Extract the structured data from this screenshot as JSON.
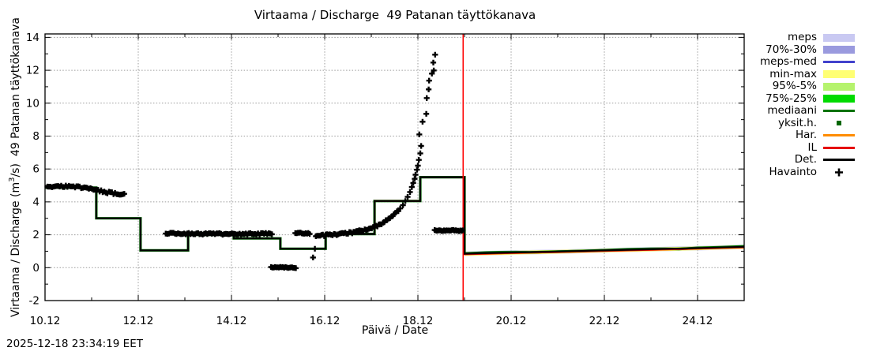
{
  "title": "Virtaama / Discharge  49 Patanan täyttökanava",
  "footer": {
    "timestamp": "2025-12-18 23:34:19 EET"
  },
  "axes": {
    "x_label": "Päivä / Date",
    "y_label_pre": "Virtaama / Discharge (m",
    "y_label_sup": "3",
    "y_label_post": "/s)  49 Patanan täyttökanava",
    "x": {
      "min": 0,
      "max": 15,
      "major_step": 2,
      "minor_step": 1,
      "major_labels": [
        "10.12",
        "12.12",
        "14.12",
        "16.12",
        "18.12",
        "20.12",
        "22.12",
        "24.12"
      ]
    },
    "y": {
      "min": -2.0,
      "max": 14.21,
      "major_step": 2,
      "minor_step": 1,
      "major_values": [
        -2,
        0,
        2,
        4,
        6,
        8,
        10,
        12,
        14
      ],
      "major_labels": [
        "-2",
        "0",
        "2",
        "4",
        "6",
        "8",
        "10",
        "12",
        "14"
      ]
    }
  },
  "colors": {
    "grid": "#9c9c9c",
    "frame": "#000000",
    "now_line": "#ff0000",
    "meps": "#c9c9f2",
    "p7030": "#9a9ade",
    "meps_med": "#4242cc",
    "minmax": "#ffff73",
    "p9505": "#b5f36d",
    "p7525": "#00db00",
    "mediaani": "#007200",
    "yksith": "#006600",
    "har": "#ff8c00",
    "il": "#e60000",
    "det": "#000000",
    "havainto": "#000000"
  },
  "legend": {
    "items": [
      {
        "key": "meps",
        "label": "meps",
        "sample": "band",
        "color": "#c9c9f2"
      },
      {
        "key": "p70-30",
        "label": "70%-30%",
        "sample": "band",
        "color": "#9a9ade"
      },
      {
        "key": "meps-med",
        "label": "meps-med",
        "sample": "line",
        "color": "#4242cc"
      },
      {
        "key": "min-max",
        "label": "min-max",
        "sample": "band",
        "color": "#ffff73"
      },
      {
        "key": "p95-5",
        "label": "95%-5%",
        "sample": "band",
        "color": "#b5f36d"
      },
      {
        "key": "p75-25",
        "label": "75%-25%",
        "sample": "band",
        "color": "#00db00"
      },
      {
        "key": "mediaani",
        "label": "mediaani",
        "sample": "line",
        "color": "#007200"
      },
      {
        "key": "yksit-h",
        "label": "yksit.h.",
        "sample": "dot",
        "color": "#006600"
      },
      {
        "key": "har",
        "label": "Har.",
        "sample": "line",
        "color": "#ff8c00"
      },
      {
        "key": "il",
        "label": "IL",
        "sample": "line",
        "color": "#e60000"
      },
      {
        "key": "det",
        "label": "Det.",
        "sample": "line",
        "color": "#000000"
      },
      {
        "key": "havainto",
        "label": "Havainto",
        "sample": "plus",
        "color": "#000000"
      }
    ]
  },
  "chart_data": {
    "type": "line",
    "x_unit": "days since 10.12 00:00, labels are day.month",
    "now_marker_day": 8.97,
    "bands": [
      {
        "name": "meps",
        "color": "#c9c9f2",
        "upper": [
          [
            9.0,
            0.98
          ],
          [
            9.4,
            1.01
          ],
          [
            10,
            1.05
          ],
          [
            11,
            1.11
          ],
          [
            12,
            1.18
          ],
          [
            13,
            1.25
          ],
          [
            14,
            1.32
          ],
          [
            15,
            1.4
          ]
        ],
        "lower": [
          [
            9.0,
            0.71
          ],
          [
            9.4,
            0.74
          ],
          [
            10,
            0.78
          ],
          [
            11,
            0.84
          ],
          [
            12,
            0.91
          ],
          [
            13,
            0.98
          ],
          [
            14,
            1.05
          ],
          [
            15,
            1.13
          ]
        ]
      },
      {
        "name": "70%-30%",
        "color": "#9a9ade",
        "upper": [
          [
            9.0,
            0.925
          ],
          [
            9.4,
            0.955
          ],
          [
            10,
            0.995
          ],
          [
            11,
            1.055
          ],
          [
            12,
            1.125
          ],
          [
            13,
            1.195
          ],
          [
            14,
            1.265
          ],
          [
            15,
            1.345
          ]
        ],
        "lower": [
          [
            9.0,
            0.775
          ],
          [
            9.4,
            0.805
          ],
          [
            10,
            0.845
          ],
          [
            11,
            0.905
          ],
          [
            12,
            0.975
          ],
          [
            13,
            1.045
          ],
          [
            14,
            1.115
          ],
          [
            15,
            1.195
          ]
        ]
      },
      {
        "name": "min-max",
        "color": "#ffff73",
        "upper": [
          [
            9.0,
            0.95
          ],
          [
            9.4,
            0.98
          ],
          [
            10,
            1.02
          ],
          [
            11,
            1.08
          ],
          [
            12,
            1.15
          ],
          [
            13,
            1.22
          ],
          [
            14,
            1.29
          ],
          [
            15,
            1.37
          ]
        ],
        "lower": [
          [
            9.0,
            0.725
          ],
          [
            9.4,
            0.755
          ],
          [
            10,
            0.795
          ],
          [
            11,
            0.855
          ],
          [
            12,
            0.925
          ],
          [
            13,
            0.995
          ],
          [
            14,
            1.065
          ],
          [
            15,
            1.145
          ]
        ]
      },
      {
        "name": "95%-5%",
        "color": "#b5f36d",
        "upper": [
          [
            9.0,
            0.925
          ],
          [
            9.4,
            0.955
          ],
          [
            10,
            0.995
          ],
          [
            11,
            1.055
          ],
          [
            12,
            1.125
          ],
          [
            13,
            1.195
          ],
          [
            14,
            1.265
          ],
          [
            15,
            1.345
          ]
        ],
        "lower": [
          [
            9.0,
            0.76
          ],
          [
            9.4,
            0.79
          ],
          [
            10,
            0.83
          ],
          [
            11,
            0.89
          ],
          [
            12,
            0.96
          ],
          [
            13,
            1.03
          ],
          [
            14,
            1.1
          ],
          [
            15,
            1.18
          ]
        ]
      },
      {
        "name": "75%-25%",
        "color": "#00db00",
        "upper": [
          [
            9.0,
            0.9
          ],
          [
            9.4,
            0.93
          ],
          [
            10,
            0.97
          ],
          [
            11,
            1.03
          ],
          [
            12,
            1.1
          ],
          [
            13,
            1.17
          ],
          [
            14,
            1.24
          ],
          [
            15,
            1.32
          ]
        ],
        "lower": [
          [
            9.0,
            0.8
          ],
          [
            9.4,
            0.83
          ],
          [
            10,
            0.87
          ],
          [
            11,
            0.93
          ],
          [
            12,
            1.0
          ],
          [
            13,
            1.07
          ],
          [
            14,
            1.14
          ],
          [
            15,
            1.22
          ]
        ]
      }
    ],
    "lines": [
      {
        "name": "meps-med",
        "color": "#4242cc",
        "width": 2,
        "points": [
          [
            9.0,
            0.84
          ],
          [
            9.6,
            0.89
          ],
          [
            10.1,
            0.945
          ],
          [
            10.4,
            0.955
          ],
          [
            10.7,
            0.96
          ],
          [
            11,
            1.0
          ],
          [
            11.5,
            1.045
          ],
          [
            11.95,
            1.075
          ],
          [
            12.3,
            1.06
          ],
          [
            13,
            1.11
          ],
          [
            14,
            1.185
          ],
          [
            15,
            1.265
          ]
        ]
      },
      {
        "name": "Har.",
        "color": "#ff8c00",
        "width": 2,
        "points": [
          [
            9.0,
            0.805
          ],
          [
            10,
            0.875
          ],
          [
            11,
            0.935
          ],
          [
            12,
            1.005
          ],
          [
            13,
            1.075
          ],
          [
            14,
            1.145
          ],
          [
            15,
            1.225
          ]
        ]
      },
      {
        "name": "mediaani",
        "color": "#007200",
        "width": 3.2,
        "points": [
          [
            0,
            4.87
          ],
          [
            1.1,
            4.87
          ],
          [
            1.1,
            3.0
          ],
          [
            2.05,
            3.0
          ],
          [
            2.05,
            1.05
          ],
          [
            3.07,
            1.05
          ],
          [
            3.07,
            2.0
          ],
          [
            4.05,
            2.0
          ],
          [
            4.05,
            1.78
          ],
          [
            5.05,
            1.78
          ],
          [
            5.05,
            1.15
          ],
          [
            6.02,
            1.15
          ],
          [
            6.02,
            2.05
          ],
          [
            7.07,
            2.05
          ],
          [
            7.07,
            4.05
          ],
          [
            8.05,
            4.05
          ],
          [
            8.05,
            5.5
          ],
          [
            9.0,
            5.5
          ],
          [
            9.0,
            0.86
          ],
          [
            9.45,
            0.92
          ],
          [
            9.8,
            0.945
          ],
          [
            10.1,
            0.95
          ],
          [
            10.4,
            0.93
          ],
          [
            11,
            0.985
          ],
          [
            11.5,
            1.01
          ],
          [
            12,
            1.06
          ],
          [
            12.5,
            1.115
          ],
          [
            13,
            1.145
          ],
          [
            13.3,
            1.15
          ],
          [
            13.6,
            1.13
          ],
          [
            14,
            1.21
          ],
          [
            14.5,
            1.24
          ],
          [
            15,
            1.3
          ]
        ]
      },
      {
        "name": "IL",
        "color": "#e60000",
        "width": 2,
        "points": [
          [
            7.07,
            2.05
          ],
          [
            7.07,
            4.05
          ],
          [
            8.05,
            4.05
          ],
          [
            8.05,
            5.5
          ],
          [
            9.0,
            5.5
          ],
          [
            9.0,
            0.815
          ],
          [
            9.4,
            0.845
          ],
          [
            10,
            0.885
          ],
          [
            11,
            0.945
          ],
          [
            12,
            1.015
          ],
          [
            13,
            1.085
          ],
          [
            14,
            1.155
          ],
          [
            15,
            1.235
          ]
        ]
      },
      {
        "name": "Det.",
        "color": "#000000",
        "width": 2.2,
        "points": [
          [
            0,
            4.87
          ],
          [
            1.1,
            4.87
          ],
          [
            1.1,
            3.0
          ],
          [
            2.05,
            3.0
          ],
          [
            2.05,
            1.05
          ],
          [
            3.07,
            1.05
          ],
          [
            3.07,
            2.0
          ],
          [
            4.05,
            2.0
          ],
          [
            4.05,
            1.78
          ],
          [
            5.05,
            1.78
          ],
          [
            5.05,
            1.15
          ],
          [
            6.02,
            1.15
          ],
          [
            6.02,
            2.05
          ],
          [
            7.07,
            2.05
          ],
          [
            7.07,
            4.05
          ],
          [
            8.05,
            4.05
          ],
          [
            8.05,
            5.5
          ],
          [
            9.0,
            5.5
          ],
          [
            9.0,
            0.85
          ],
          [
            9.4,
            0.88
          ],
          [
            10,
            0.92
          ],
          [
            11,
            0.98
          ],
          [
            12,
            1.05
          ],
          [
            13,
            1.12
          ],
          [
            14,
            1.19
          ],
          [
            15,
            1.27
          ]
        ]
      }
    ],
    "observations": {
      "name": "Havainto",
      "marker": "plus",
      "color": "#000000",
      "clusters": [
        {
          "d0": 0.05,
          "d1": 1.7,
          "step": 0.033,
          "jitter": 0.06,
          "anchors": [
            [
              0.05,
              4.87
            ],
            [
              0.3,
              4.93
            ],
            [
              0.6,
              4.94
            ],
            [
              0.9,
              4.83
            ],
            [
              1.2,
              4.65
            ],
            [
              1.5,
              4.5
            ],
            [
              1.7,
              4.43
            ]
          ]
        },
        {
          "d0": 2.59,
          "d1": 4.88,
          "step": 0.033,
          "jitter": 0.05,
          "anchors": [
            [
              2.59,
              2.1
            ],
            [
              3.0,
              2.06
            ],
            [
              4.0,
              2.05
            ],
            [
              4.88,
              2.06
            ]
          ]
        },
        {
          "d0": 4.85,
          "d1": 5.39,
          "step": 0.028,
          "jitter": 0.03,
          "anchors": [
            [
              4.85,
              0.02
            ],
            [
              5.39,
              0.0
            ]
          ]
        },
        {
          "d0": 5.37,
          "d1": 5.69,
          "step": 0.028,
          "jitter": 0.04,
          "anchors": [
            [
              5.37,
              2.1
            ],
            [
              5.69,
              2.08
            ]
          ]
        },
        {
          "d0": 5.81,
          "d1": 7.58,
          "step": 0.03,
          "jitter": 0.06,
          "anchors": [
            [
              5.81,
              1.92
            ],
            [
              6.1,
              2.0
            ],
            [
              6.5,
              2.1
            ],
            [
              6.8,
              2.25
            ],
            [
              7.0,
              2.4
            ],
            [
              7.2,
              2.65
            ],
            [
              7.4,
              3.0
            ],
            [
              7.58,
              3.45
            ]
          ]
        },
        {
          "d0": 8.36,
          "d1": 8.98,
          "step": 0.025,
          "jitter": 0.04,
          "anchors": [
            [
              8.36,
              2.27
            ],
            [
              8.98,
              2.25
            ]
          ]
        }
      ],
      "points": [
        [
          5.75,
          0.62
        ],
        [
          5.79,
          1.15
        ],
        [
          7.62,
          3.6
        ],
        [
          7.68,
          3.8
        ],
        [
          7.73,
          4.05
        ],
        [
          7.78,
          4.3
        ],
        [
          7.83,
          4.6
        ],
        [
          7.87,
          4.9
        ],
        [
          7.9,
          5.15
        ],
        [
          7.93,
          5.4
        ],
        [
          7.95,
          5.65
        ],
        [
          7.98,
          5.95
        ],
        [
          8.0,
          6.2
        ],
        [
          8.02,
          6.55
        ],
        [
          8.05,
          6.95
        ],
        [
          8.07,
          7.4
        ],
        [
          8.03,
          8.1
        ],
        [
          8.1,
          8.87
        ],
        [
          8.18,
          9.35
        ],
        [
          8.19,
          10.31
        ],
        [
          8.23,
          10.84
        ],
        [
          8.24,
          11.37
        ],
        [
          8.3,
          11.8
        ],
        [
          8.33,
          12.47
        ],
        [
          8.34,
          11.99
        ],
        [
          8.37,
          12.95
        ]
      ]
    }
  }
}
